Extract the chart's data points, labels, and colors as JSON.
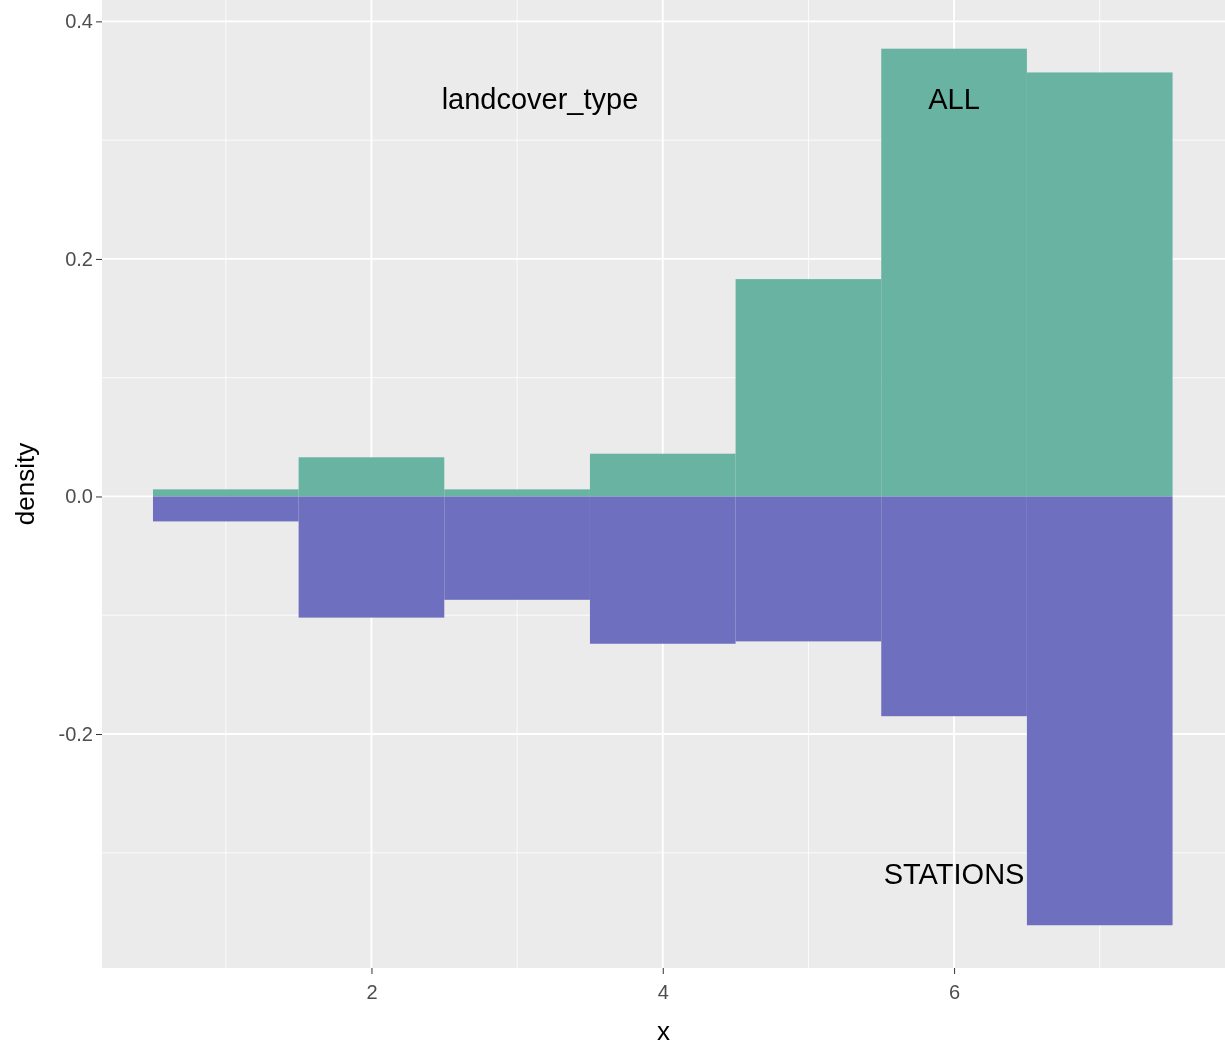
{
  "chart_data": {
    "type": "bar",
    "xlabel": "x",
    "ylabel": "density",
    "legend_title": "landcover_type",
    "x": [
      1,
      2,
      3,
      4,
      5,
      6,
      7
    ],
    "series": [
      {
        "name": "ALL",
        "color": "#69b3a2",
        "values": [
          0.006,
          0.033,
          0.006,
          0.036,
          0.183,
          0.377,
          0.357
        ]
      },
      {
        "name": "STATIONS",
        "color": "#6f6fbf",
        "values": [
          -0.021,
          -0.102,
          -0.087,
          -0.124,
          -0.122,
          -0.185,
          -0.361
        ]
      }
    ],
    "xlim": [
      0.15,
      7.86
    ],
    "ylim": [
      -0.397,
      0.418
    ],
    "xticks": [
      2,
      4,
      6
    ],
    "yticks": [
      {
        "value": -0.2,
        "label": "-0.2"
      },
      {
        "value": 0,
        "label": "0.0"
      },
      {
        "value": 0.2,
        "label": "0.2"
      },
      {
        "value": 0.4,
        "label": "0.4"
      }
    ],
    "grid": true,
    "stacked": true
  }
}
